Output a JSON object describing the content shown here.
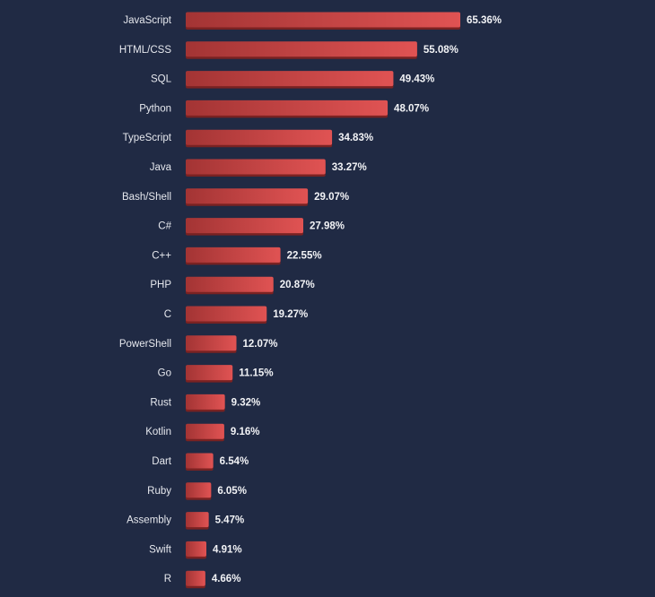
{
  "colors": {
    "background": "#202a44",
    "bar_dark": "#a33434",
    "bar_light": "#e05353",
    "bar_shadow": "#7a2222",
    "text": "#e6e8ee"
  },
  "chart_data": {
    "type": "bar",
    "orientation": "horizontal",
    "title": "",
    "xlabel": "",
    "ylabel": "",
    "grid": false,
    "legend": "none",
    "xlim": [
      0,
      100
    ],
    "categories": [
      "JavaScript",
      "HTML/CSS",
      "SQL",
      "Python",
      "TypeScript",
      "Java",
      "Bash/Shell",
      "C#",
      "C++",
      "PHP",
      "C",
      "PowerShell",
      "Go",
      "Rust",
      "Kotlin",
      "Dart",
      "Ruby",
      "Assembly",
      "Swift",
      "R"
    ],
    "values": [
      65.36,
      55.08,
      49.43,
      48.07,
      34.83,
      33.27,
      29.07,
      27.98,
      22.55,
      20.87,
      19.27,
      12.07,
      11.15,
      9.32,
      9.16,
      6.54,
      6.05,
      5.47,
      4.91,
      4.66
    ],
    "value_labels": [
      "65.36%",
      "55.08%",
      "49.43%",
      "48.07%",
      "34.83%",
      "33.27%",
      "29.07%",
      "27.98%",
      "22.55%",
      "20.87%",
      "19.27%",
      "12.07%",
      "11.15%",
      "9.32%",
      "9.16%",
      "6.54%",
      "6.05%",
      "5.47%",
      "4.91%",
      "4.66%"
    ]
  }
}
